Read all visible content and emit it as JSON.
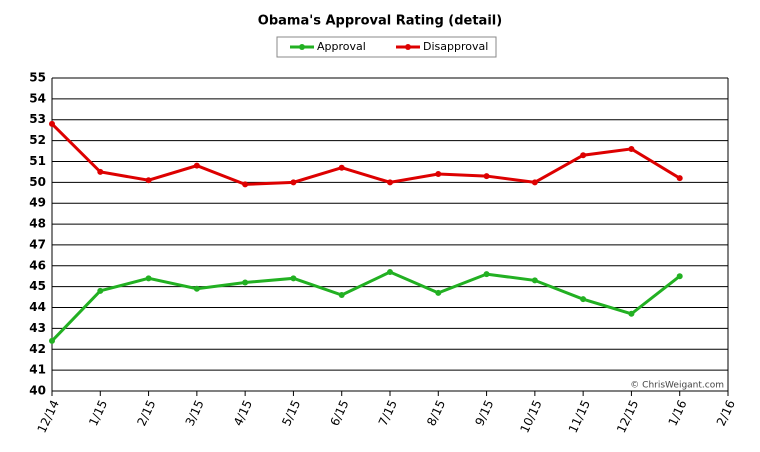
{
  "chart_data": {
    "type": "line",
    "title": "Obama's Approval Rating (detail)",
    "categories": [
      "12/14",
      "1/15",
      "2/15",
      "3/15",
      "4/15",
      "5/15",
      "6/15",
      "7/15",
      "8/15",
      "9/15",
      "10/15",
      "11/15",
      "12/15",
      "1/16",
      "2/16"
    ],
    "series": [
      {
        "name": "Approval",
        "color": "#22b022",
        "values": [
          42.4,
          44.8,
          45.4,
          44.9,
          45.2,
          45.4,
          44.6,
          45.7,
          44.7,
          45.6,
          45.3,
          44.4,
          43.7,
          45.5,
          null
        ]
      },
      {
        "name": "Disapproval",
        "color": "#dd0000",
        "values": [
          52.8,
          50.5,
          50.1,
          50.8,
          49.9,
          50.0,
          50.7,
          50.0,
          50.4,
          50.3,
          50.0,
          51.3,
          51.6,
          50.2,
          null
        ]
      }
    ],
    "ylim": [
      40,
      55
    ],
    "yticks": [
      40,
      41,
      42,
      43,
      44,
      45,
      46,
      47,
      48,
      49,
      50,
      51,
      52,
      53,
      54,
      55
    ],
    "grid": true,
    "legend": "top",
    "annotation": "© ChrisWeigant.com"
  }
}
